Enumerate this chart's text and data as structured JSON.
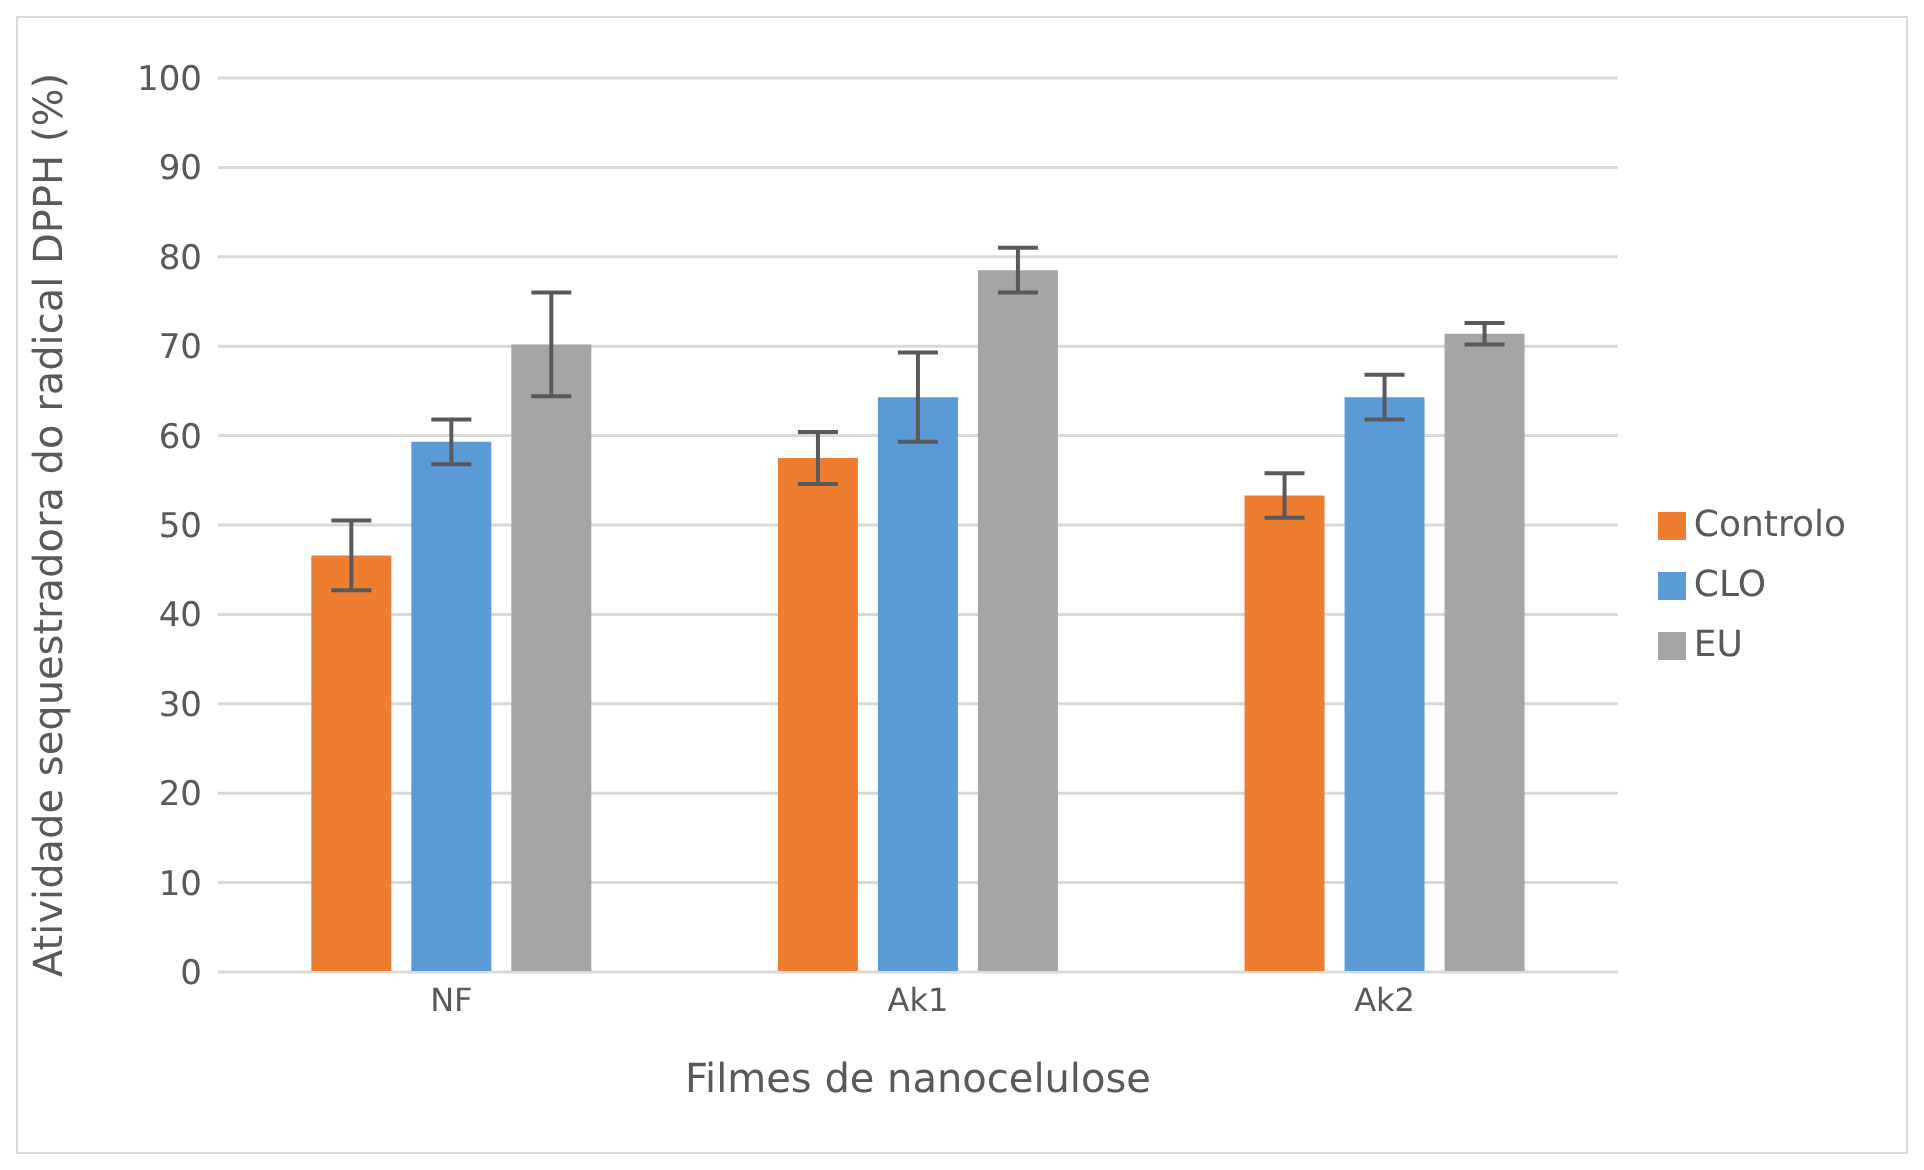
{
  "chart_data": {
    "type": "bar",
    "xlabel": "Filmes de nanocelulose",
    "ylabel": "Atividade sequestradora do radical DPPH (%)",
    "categories": [
      "NF",
      "Ak1",
      "Ak2"
    ],
    "series": [
      {
        "name": "Controlo",
        "color": "#ed7d31",
        "values": [
          46.6,
          57.5,
          53.3
        ],
        "errors": [
          3.9,
          2.9,
          2.5
        ]
      },
      {
        "name": "CLO",
        "color": "#5b9bd5",
        "values": [
          59.3,
          64.3,
          64.3
        ],
        "errors": [
          2.5,
          5,
          2.5
        ]
      },
      {
        "name": "EU",
        "color": "#a5a5a5",
        "values": [
          70.2,
          78.5,
          71.4
        ],
        "errors": [
          5.8,
          2.5,
          1.2
        ]
      }
    ],
    "ylim": [
      0,
      100
    ],
    "yticks": [
      0,
      10,
      20,
      30,
      40,
      50,
      60,
      70,
      80,
      90,
      100
    ],
    "grid": "y",
    "legend": "right"
  }
}
